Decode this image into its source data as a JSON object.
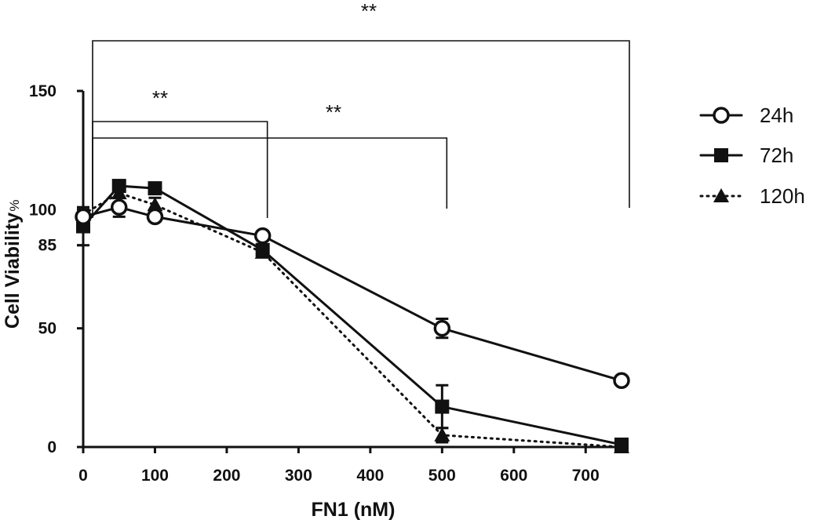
{
  "chart_data": {
    "type": "line",
    "xlabel": "FN1 (nM)",
    "ylabel": "Cell Viability",
    "ylabel_unit": "%",
    "xlim": [
      0,
      750
    ],
    "ylim": [
      0,
      150
    ],
    "x_ticks": [
      "0",
      "100",
      "200",
      "300",
      "400",
      "500",
      "600",
      "700"
    ],
    "y_ticks": [
      "0",
      "50",
      "85",
      "100",
      "150"
    ],
    "x": [
      0,
      50,
      100,
      250,
      500,
      750
    ],
    "series": [
      {
        "name": "24h",
        "marker": "open-circle",
        "line": "solid",
        "color": "#111111",
        "values": [
          97,
          101,
          97,
          89,
          50,
          28
        ],
        "errors": [
          3,
          4,
          2,
          2,
          4,
          1
        ]
      },
      {
        "name": "72h",
        "marker": "filled-square",
        "line": "solid",
        "color": "#111111",
        "values": [
          93,
          110,
          109,
          83,
          17,
          1
        ],
        "errors": [
          8,
          2,
          2,
          2,
          9,
          1
        ]
      },
      {
        "name": "120h",
        "marker": "filled-triangle",
        "line": "dotted",
        "color": "#111111",
        "values": [
          98,
          107,
          102,
          82,
          5,
          0
        ],
        "errors": [
          3,
          2,
          3,
          2,
          3,
          0
        ]
      }
    ],
    "significance": [
      {
        "label": "**",
        "from": 0,
        "to": 750
      },
      {
        "label": "**",
        "from": 0,
        "to": 250
      },
      {
        "label": "**",
        "from": 0,
        "to": 500
      }
    ],
    "legend_position": "right",
    "grid": false
  }
}
